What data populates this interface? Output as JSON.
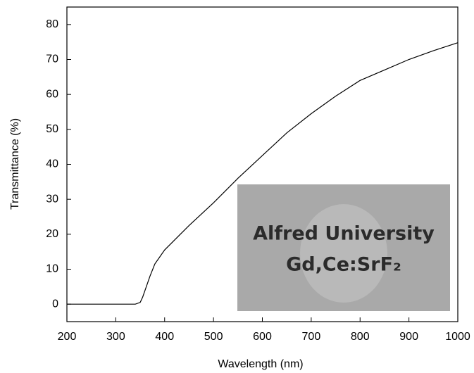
{
  "chart_data": {
    "type": "line",
    "xlabel": "Wavelength (nm)",
    "ylabel": "Transmittance (%)",
    "x": [
      200,
      250,
      300,
      330,
      340,
      350,
      355,
      360,
      370,
      380,
      400,
      450,
      500,
      550,
      600,
      650,
      700,
      750,
      800,
      850,
      900,
      950,
      1000
    ],
    "values": [
      0,
      0,
      0,
      0,
      0,
      0.5,
      2,
      4,
      8,
      11.5,
      15.5,
      22.5,
      29,
      36,
      42.5,
      49,
      54.5,
      59.5,
      64,
      67,
      70,
      72.5,
      74.8
    ],
    "color": "#000000",
    "xlim": [
      200,
      1000
    ],
    "xticks": [
      200,
      300,
      400,
      500,
      600,
      700,
      800,
      900,
      1000
    ],
    "ylim": [
      -5,
      85
    ],
    "yticks": [
      0,
      10,
      20,
      30,
      40,
      50,
      60,
      70,
      80
    ],
    "grid": false,
    "inset_text": [
      "Alfred University",
      "Gd,Ce:SrF₂"
    ]
  }
}
